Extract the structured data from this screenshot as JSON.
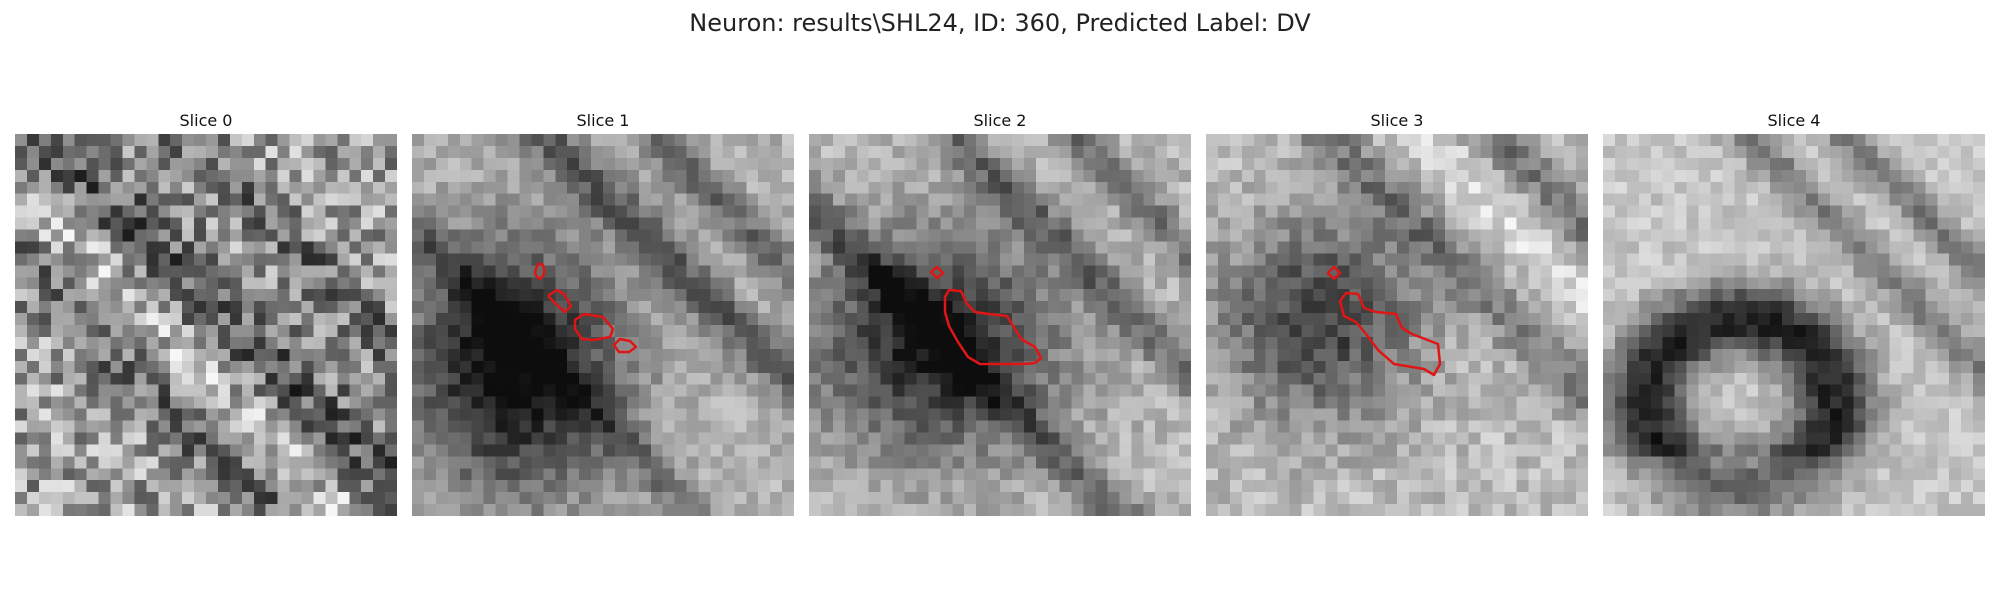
{
  "figure": {
    "title": "Neuron: results\\SHL24, ID: 360, Predicted Label: DV"
  },
  "slices": [
    {
      "label": "Slice 0"
    },
    {
      "label": "Slice 1"
    },
    {
      "label": "Slice 2"
    },
    {
      "label": "Slice 3"
    },
    {
      "label": "Slice 4"
    }
  ],
  "colors": {
    "contour": "#e01515"
  }
}
